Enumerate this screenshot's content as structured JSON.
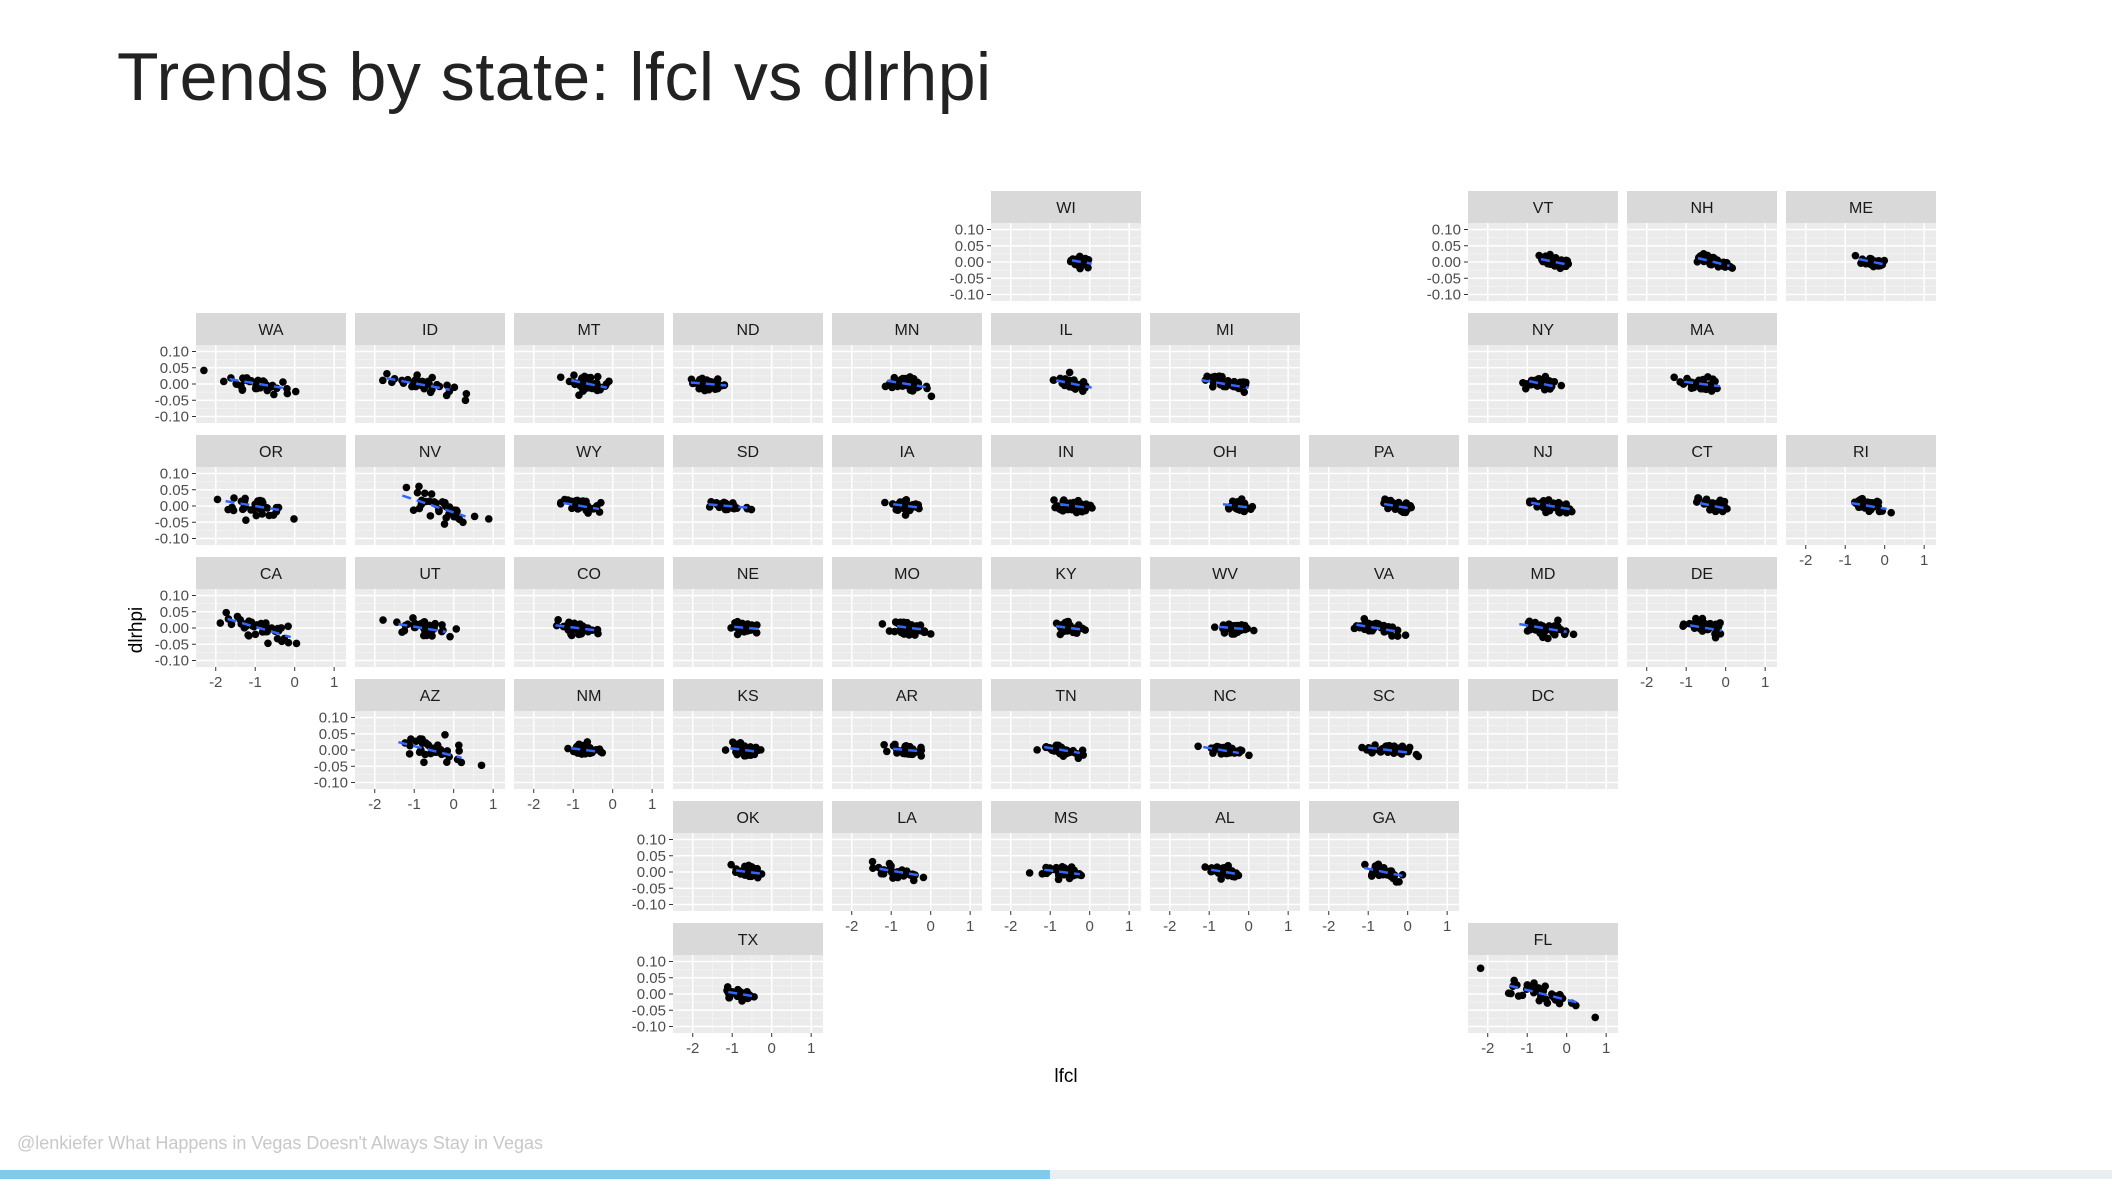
{
  "slide": {
    "title": "Trends by state: lfcl vs dlrhpi",
    "footer": "@lenkiefer What Happens in Vegas Doesn't Always Stay in Vegas",
    "progress": 0.497,
    "progress_color": "#7ecbea"
  },
  "chart_data": {
    "type": "scatter",
    "title": "",
    "xlabel": "lfcl",
    "ylabel": "dlrhpi",
    "xlim": [
      -2.5,
      1.3
    ],
    "ylim": [
      -0.12,
      0.12
    ],
    "x_ticks": [
      -2,
      -1,
      0,
      1
    ],
    "y_ticks": [
      0.1,
      0.05,
      0.0,
      -0.05,
      -0.1
    ],
    "y_tick_labels": [
      "0.10",
      "0.05",
      "0.00",
      "-0.05",
      "-0.10"
    ],
    "grid": true,
    "panel_background": "#ebebeb",
    "strip_background": "#d9d9d9",
    "point_color": "#000000",
    "trend_color": "#3366ff",
    "layout": "geofacet (US state grid)",
    "panels": [
      {
        "state": "WI",
        "cx": -0.2,
        "sx": 0.25,
        "slope": -0.02,
        "icept": 0.0,
        "sy": 0.008
      },
      {
        "state": "VT",
        "cx": -0.3,
        "sx": 0.35,
        "slope": -0.025,
        "icept": 0.0,
        "sy": 0.008
      },
      {
        "state": "NH",
        "cx": -0.3,
        "sx": 0.4,
        "slope": -0.03,
        "icept": 0.0,
        "sy": 0.008
      },
      {
        "state": "ME",
        "cx": -0.3,
        "sx": 0.35,
        "slope": -0.025,
        "icept": 0.0,
        "sy": 0.008
      },
      {
        "state": "WA",
        "cx": -0.9,
        "sx": 0.75,
        "slope": -0.02,
        "icept": 0.0,
        "sy": 0.012
      },
      {
        "state": "ID",
        "cx": -0.9,
        "sx": 0.8,
        "slope": -0.022,
        "icept": 0.0,
        "sy": 0.012
      },
      {
        "state": "MT",
        "cx": -0.6,
        "sx": 0.45,
        "slope": -0.025,
        "icept": 0.0,
        "sy": 0.012
      },
      {
        "state": "ND",
        "cx": -1.6,
        "sx": 0.45,
        "slope": -0.01,
        "icept": 0.0,
        "sy": 0.008
      },
      {
        "state": "MN",
        "cx": -0.6,
        "sx": 0.5,
        "slope": -0.02,
        "icept": 0.0,
        "sy": 0.01
      },
      {
        "state": "IL",
        "cx": -0.4,
        "sx": 0.45,
        "slope": -0.025,
        "icept": 0.0,
        "sy": 0.01
      },
      {
        "state": "MI",
        "cx": -0.6,
        "sx": 0.6,
        "slope": -0.02,
        "icept": 0.0,
        "sy": 0.01
      },
      {
        "state": "NY",
        "cx": -0.6,
        "sx": 0.35,
        "slope": -0.025,
        "icept": 0.0,
        "sy": 0.01
      },
      {
        "state": "MA",
        "cx": -0.6,
        "sx": 0.45,
        "slope": -0.015,
        "icept": 0.0,
        "sy": 0.01
      },
      {
        "state": "OR",
        "cx": -1.0,
        "sx": 0.75,
        "slope": -0.02,
        "icept": 0.0,
        "sy": 0.012
      },
      {
        "state": "NV",
        "cx": -0.5,
        "sx": 0.8,
        "slope": -0.04,
        "icept": 0.0,
        "sy": 0.02
      },
      {
        "state": "WY",
        "cx": -0.8,
        "sx": 0.45,
        "slope": -0.02,
        "icept": 0.0,
        "sy": 0.01
      },
      {
        "state": "SD",
        "cx": -1.1,
        "sx": 0.5,
        "slope": -0.01,
        "icept": 0.0,
        "sy": 0.008
      },
      {
        "state": "IA",
        "cx": -0.6,
        "sx": 0.35,
        "slope": -0.015,
        "icept": 0.0,
        "sy": 0.01
      },
      {
        "state": "IN",
        "cx": -0.4,
        "sx": 0.35,
        "slope": -0.015,
        "icept": 0.0,
        "sy": 0.01
      },
      {
        "state": "OH",
        "cx": -0.3,
        "sx": 0.35,
        "slope": -0.015,
        "icept": 0.0,
        "sy": 0.01
      },
      {
        "state": "PA",
        "cx": -0.3,
        "sx": 0.3,
        "slope": -0.02,
        "icept": 0.0,
        "sy": 0.008
      },
      {
        "state": "NJ",
        "cx": -0.4,
        "sx": 0.5,
        "slope": -0.02,
        "icept": 0.0,
        "sy": 0.01
      },
      {
        "state": "CT",
        "cx": -0.3,
        "sx": 0.35,
        "slope": -0.025,
        "icept": 0.0,
        "sy": 0.01
      },
      {
        "state": "RI",
        "cx": -0.4,
        "sx": 0.45,
        "slope": -0.02,
        "icept": 0.0,
        "sy": 0.01
      },
      {
        "state": "CA",
        "cx": -0.9,
        "sx": 0.8,
        "slope": -0.035,
        "icept": 0.0,
        "sy": 0.015
      },
      {
        "state": "UT",
        "cx": -0.8,
        "sx": 0.6,
        "slope": -0.02,
        "icept": 0.0,
        "sy": 0.012
      },
      {
        "state": "CO",
        "cx": -0.9,
        "sx": 0.55,
        "slope": -0.015,
        "icept": 0.0,
        "sy": 0.008
      },
      {
        "state": "NE",
        "cx": -0.6,
        "sx": 0.35,
        "slope": -0.01,
        "icept": 0.0,
        "sy": 0.008
      },
      {
        "state": "MO",
        "cx": -0.5,
        "sx": 0.35,
        "slope": -0.015,
        "icept": 0.0,
        "sy": 0.01
      },
      {
        "state": "KY",
        "cx": -0.5,
        "sx": 0.35,
        "slope": -0.015,
        "icept": 0.0,
        "sy": 0.008
      },
      {
        "state": "WV",
        "cx": -0.4,
        "sx": 0.35,
        "slope": -0.01,
        "icept": 0.0,
        "sy": 0.008
      },
      {
        "state": "VA",
        "cx": -0.8,
        "sx": 0.5,
        "slope": -0.02,
        "icept": 0.0,
        "sy": 0.01
      },
      {
        "state": "MD",
        "cx": -0.6,
        "sx": 0.6,
        "slope": -0.02,
        "icept": 0.0,
        "sy": 0.012
      },
      {
        "state": "DE",
        "cx": -0.5,
        "sx": 0.4,
        "slope": -0.02,
        "icept": 0.0,
        "sy": 0.01
      },
      {
        "state": "AZ",
        "cx": -0.6,
        "sx": 0.8,
        "slope": -0.03,
        "icept": 0.0,
        "sy": 0.02
      },
      {
        "state": "NM",
        "cx": -0.7,
        "sx": 0.35,
        "slope": -0.015,
        "icept": 0.0,
        "sy": 0.01
      },
      {
        "state": "KS",
        "cx": -0.7,
        "sx": 0.35,
        "slope": -0.015,
        "icept": 0.0,
        "sy": 0.008
      },
      {
        "state": "AR",
        "cx": -0.6,
        "sx": 0.35,
        "slope": -0.01,
        "icept": 0.0,
        "sy": 0.008
      },
      {
        "state": "TN",
        "cx": -0.7,
        "sx": 0.45,
        "slope": -0.02,
        "icept": 0.0,
        "sy": 0.008
      },
      {
        "state": "NC",
        "cx": -0.7,
        "sx": 0.45,
        "slope": -0.02,
        "icept": 0.0,
        "sy": 0.008
      },
      {
        "state": "SC",
        "cx": -0.5,
        "sx": 0.5,
        "slope": -0.015,
        "icept": 0.0,
        "sy": 0.008
      },
      {
        "state": "DC",
        "cx": 0,
        "sx": 0,
        "slope": 0,
        "icept": 0,
        "sy": 0,
        "n": 0
      },
      {
        "state": "OK",
        "cx": -0.6,
        "sx": 0.3,
        "slope": -0.015,
        "icept": 0.0,
        "sy": 0.01
      },
      {
        "state": "LA",
        "cx": -0.8,
        "sx": 0.5,
        "slope": -0.02,
        "icept": 0.0,
        "sy": 0.01
      },
      {
        "state": "MS",
        "cx": -0.7,
        "sx": 0.45,
        "slope": -0.015,
        "icept": 0.0,
        "sy": 0.01
      },
      {
        "state": "AL",
        "cx": -0.6,
        "sx": 0.35,
        "slope": -0.02,
        "icept": 0.0,
        "sy": 0.01
      },
      {
        "state": "GA",
        "cx": -0.6,
        "sx": 0.5,
        "slope": -0.025,
        "icept": 0.0,
        "sy": 0.012
      },
      {
        "state": "TX",
        "cx": -0.8,
        "sx": 0.3,
        "slope": -0.02,
        "icept": 0.0,
        "sy": 0.008
      },
      {
        "state": "FL",
        "cx": -0.6,
        "sx": 0.85,
        "slope": -0.03,
        "icept": 0.0,
        "sy": 0.015
      }
    ]
  }
}
